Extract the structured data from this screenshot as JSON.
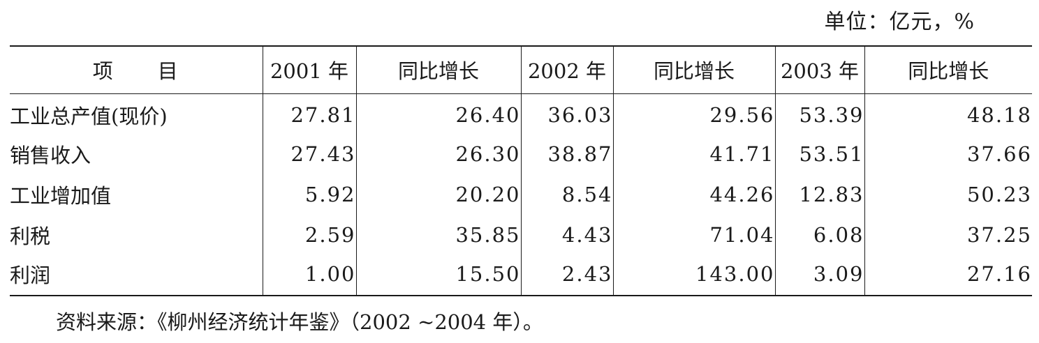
{
  "unit_note": "单位：亿元，%",
  "table": {
    "headers": [
      "项　　目",
      "2001 年",
      "同比增长",
      "2002 年",
      "同比增长",
      "2003 年",
      "同比增长"
    ],
    "rows": [
      {
        "label": "工业总产值(现价)",
        "values": [
          "27.81",
          "26.40",
          "36.03",
          "29.56",
          "53.39",
          "48.18"
        ]
      },
      {
        "label": "销售收入",
        "values": [
          "27.43",
          "26.30",
          "38.87",
          "41.71",
          "53.51",
          "37.66"
        ]
      },
      {
        "label": "工业增加值",
        "values": [
          "5.92",
          "20.20",
          "8.54",
          "44.26",
          "12.83",
          "50.23"
        ]
      },
      {
        "label": "利税",
        "values": [
          "2.59",
          "35.85",
          "4.43",
          "71.04",
          "6.08",
          "37.25"
        ]
      },
      {
        "label": "利润",
        "values": [
          "1.00",
          "15.50",
          "2.43",
          "143.00",
          "3.09",
          "27.16"
        ]
      }
    ]
  },
  "source_note": "资料来源：《柳州经济统计年鉴》（2002 ~2004 年）。"
}
